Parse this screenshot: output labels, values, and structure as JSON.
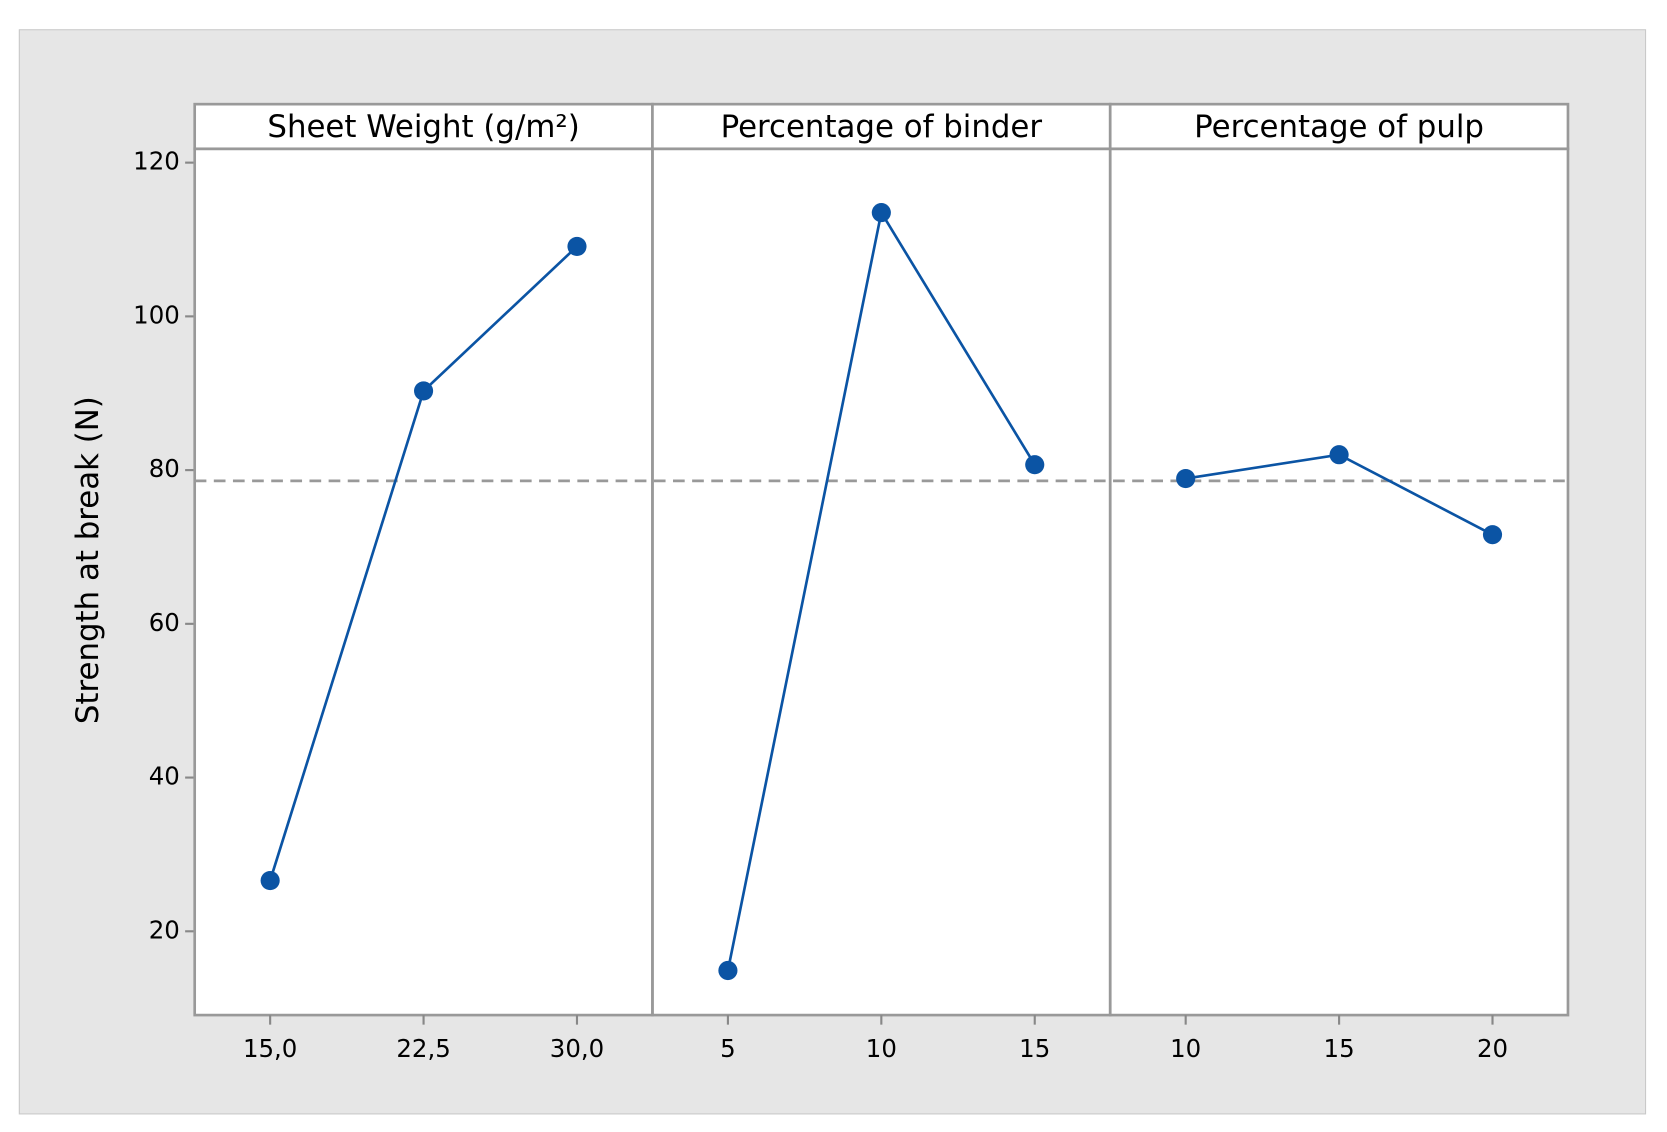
{
  "chart_data": {
    "type": "line",
    "y_label": "Strength at break (N)",
    "color": "#0b54a4",
    "ylim": [
      9.1,
      121.8
    ],
    "yticks": [
      20,
      40,
      60,
      80,
      100,
      120
    ],
    "reference_line": 78.6,
    "panels": [
      {
        "title": "Sheet Weight (g/m²)",
        "categories": [
          "15,0",
          "22,5",
          "30,0"
        ],
        "values": [
          26.6,
          90.3,
          109.1
        ]
      },
      {
        "title": "Percentage of binder",
        "categories": [
          "5",
          "10",
          "15"
        ],
        "values": [
          14.9,
          113.5,
          80.7
        ]
      },
      {
        "title": "Percentage of pulp",
        "categories": [
          "10",
          "15",
          "20"
        ],
        "values": [
          78.9,
          82.0,
          71.6
        ]
      }
    ]
  }
}
